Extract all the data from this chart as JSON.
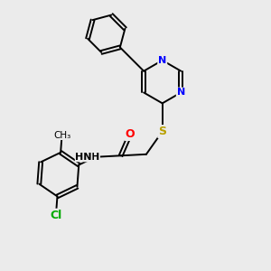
{
  "background_color": "#ebebeb",
  "bond_color": "#000000",
  "atom_colors": {
    "N": "#0000ff",
    "S": "#b8a000",
    "O": "#ff0000",
    "Cl": "#00aa00",
    "C": "#000000",
    "H": "#000000"
  },
  "figsize": [
    3.0,
    3.0
  ],
  "dpi": 100,
  "lw": 1.4,
  "fs": 8.5
}
